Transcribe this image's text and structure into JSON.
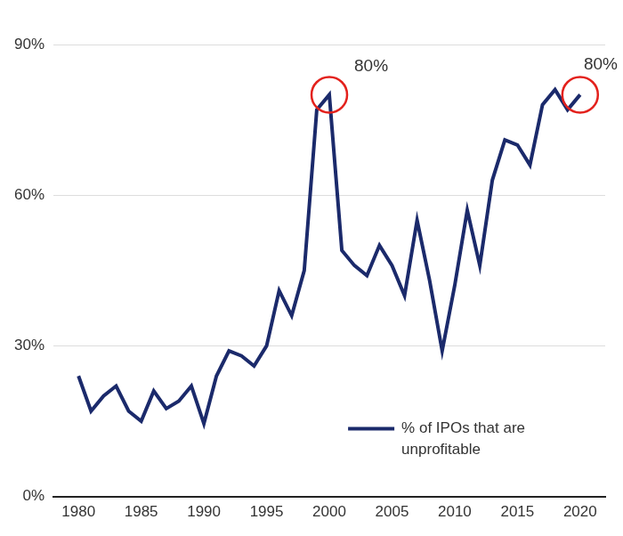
{
  "chart_data": {
    "type": "line",
    "x": [
      1980,
      1981,
      1982,
      1983,
      1984,
      1985,
      1986,
      1987,
      1988,
      1989,
      1990,
      1991,
      1992,
      1993,
      1994,
      1995,
      1996,
      1997,
      1998,
      1999,
      2000,
      2001,
      2002,
      2003,
      2004,
      2005,
      2006,
      2007,
      2008,
      2009,
      2010,
      2011,
      2012,
      2013,
      2014,
      2015,
      2016,
      2017,
      2018,
      2019,
      2020
    ],
    "series": [
      {
        "name": "% of IPOs that are unprofitable",
        "color": "#1b2a6b",
        "values": [
          24,
          17,
          20,
          22,
          17,
          15,
          21,
          17.5,
          19,
          22,
          14.5,
          24,
          29,
          28,
          26,
          30,
          41,
          36,
          45,
          77,
          80,
          49,
          46,
          44,
          50,
          46,
          40,
          55,
          43,
          29,
          42,
          57,
          46,
          63,
          71,
          70,
          66,
          78,
          81,
          77,
          80
        ]
      }
    ],
    "xlim": [
      1978,
      2022
    ],
    "xticks": [
      1980,
      1985,
      1990,
      1995,
      2000,
      2005,
      2010,
      2015,
      2020
    ],
    "ylim": [
      0,
      90
    ],
    "yticks": [
      {
        "value": 0,
        "label": "0%"
      },
      {
        "value": 30,
        "label": "30%"
      },
      {
        "value": 60,
        "label": "60%"
      },
      {
        "value": 90,
        "label": "90%"
      }
    ],
    "grid": true,
    "legend": "lower right",
    "annotations": [
      {
        "text": "80%",
        "x": 2000,
        "y": 80,
        "color": "#e3211c"
      },
      {
        "text": "80%",
        "x": 2020,
        "y": 80,
        "color": "#e3211c"
      }
    ]
  }
}
